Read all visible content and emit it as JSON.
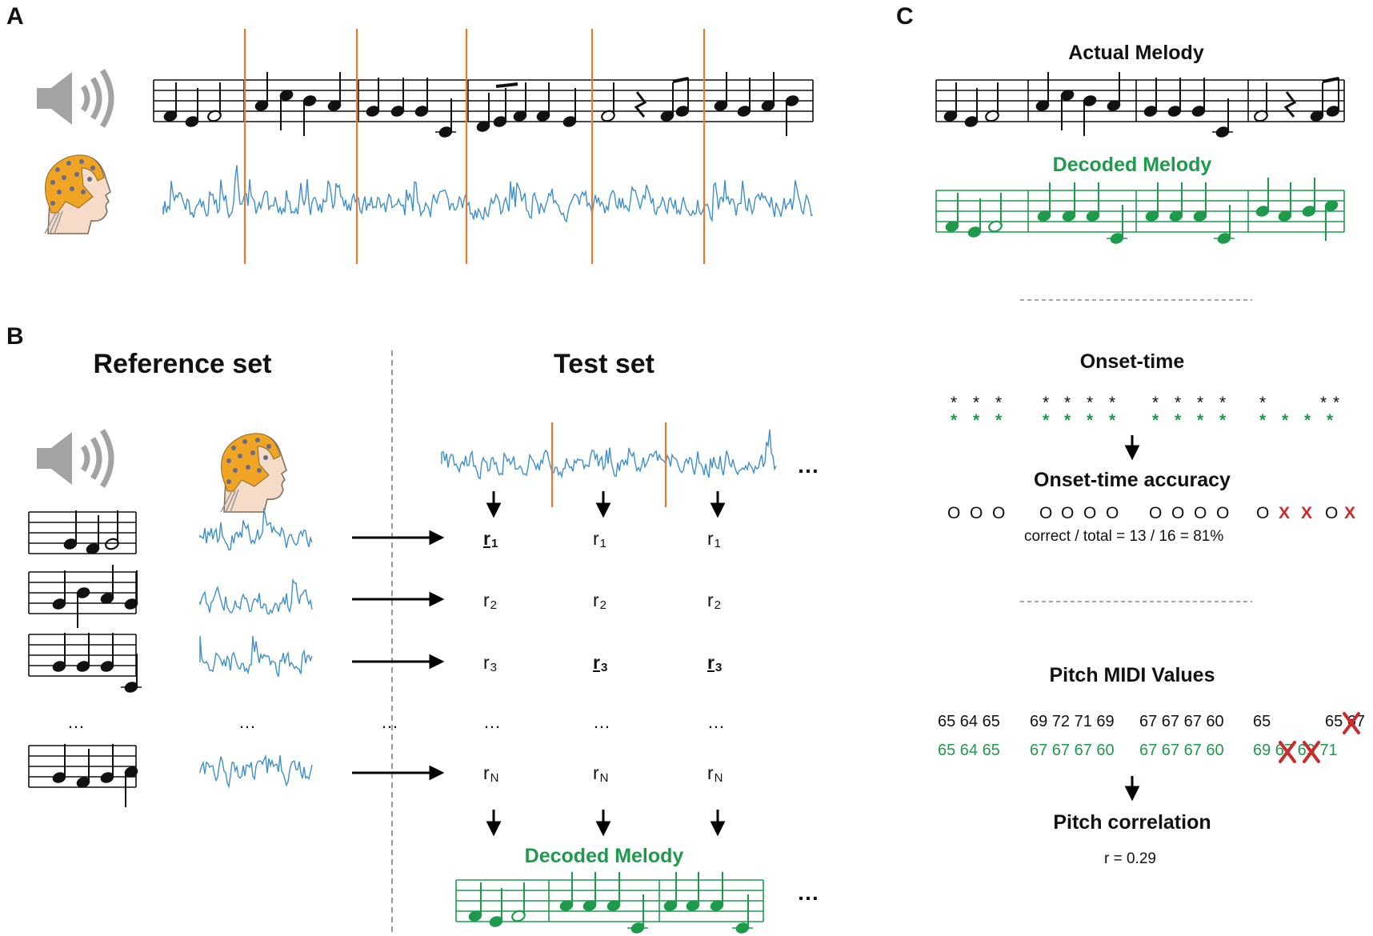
{
  "panels": {
    "a": "A",
    "b": "B",
    "c": "C"
  },
  "panel_b": {
    "reference_title": "Reference set",
    "test_title": "Test set",
    "ellipsis": "…",
    "dots": "…",
    "r_labels": {
      "r1": {
        "base": "r",
        "sub": "1"
      },
      "r2": {
        "base": "r",
        "sub": "2"
      },
      "r3": {
        "base": "r",
        "sub": "3"
      },
      "rN": {
        "base": "r",
        "sub": "N"
      }
    },
    "decoded_label": "Decoded Melody"
  },
  "panel_c": {
    "actual_label": "Actual Melody",
    "decoded_label": "Decoded Melody",
    "onset_title": "Onset-time",
    "onset_accuracy_title": "Onset-time accuracy",
    "onset_formula": "correct / total = 13 / 16  = 81%",
    "pitch_title": "Pitch MIDI Values",
    "actual_pitches": [
      "65 64 65",
      "69 72 71 69",
      "67 67 67 60",
      "65",
      "65 67"
    ],
    "decoded_pitches": [
      "65 64 65",
      "67 67 67 60",
      "67 67 67 60",
      "69 67 69 71"
    ],
    "pitch_corr_title": "Pitch correlation",
    "pitch_corr_value": "r = 0.29",
    "onset_marks": [
      "O",
      "O",
      "O",
      "O",
      "O",
      "O",
      "O",
      "O",
      "O",
      "O",
      "O",
      "O",
      "X",
      "X",
      "O",
      "X"
    ]
  },
  "colors": {
    "eeg": "#3f8fcb",
    "onset_line": "#e8792f",
    "green": "#1f9a4d",
    "red": "#cc2b2b",
    "gray": "#9a9a9a",
    "cap": "#f0a423"
  }
}
